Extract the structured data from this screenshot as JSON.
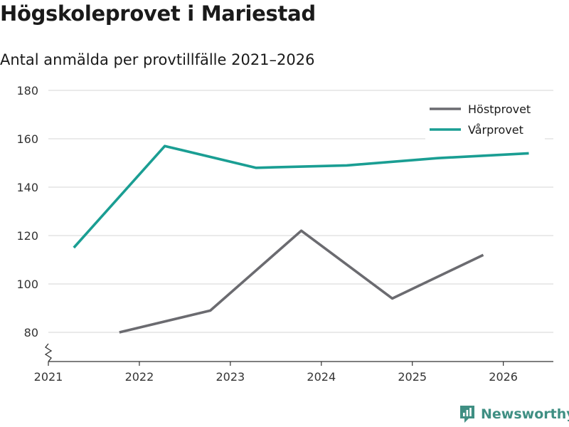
{
  "title": "Högskoleprovet i Mariestad",
  "subtitle": "Antal anmälda per provtillfälle 2021–2026",
  "brand": {
    "name": "Newsworthy",
    "icon": "newsworthy-logo-icon"
  },
  "colors": {
    "series_host": "#6b6b70",
    "series_var": "#1a9e93",
    "grid": "#dddddd",
    "brand": "#3f8f83"
  },
  "chart_data": {
    "type": "line",
    "title": "Högskoleprovet i Mariestad",
    "subtitle": "Antal anmälda per provtillfälle 2021–2026",
    "xlabel": "",
    "ylabel": "",
    "xlim": [
      2021.0,
      2026.55
    ],
    "ylim": [
      68,
      180
    ],
    "y_axis_break": true,
    "x_ticks": [
      2021,
      2022,
      2023,
      2024,
      2025,
      2026
    ],
    "x_tick_labels": [
      "2021",
      "2022",
      "2023",
      "2024",
      "2025",
      "2026"
    ],
    "y_ticks": [
      80,
      100,
      120,
      140,
      160,
      180
    ],
    "y_tick_labels": [
      "80",
      "100",
      "120",
      "140",
      "160",
      "180"
    ],
    "grid": true,
    "legend_position": "top-right",
    "series": [
      {
        "name": "Höstprovet",
        "color": "#6b6b70",
        "x": [
          2021.78,
          2022.78,
          2023.78,
          2024.78,
          2025.78
        ],
        "values": [
          80,
          89,
          122,
          94,
          112
        ]
      },
      {
        "name": "Vårprovet",
        "color": "#1a9e93",
        "x": [
          2021.28,
          2022.28,
          2023.28,
          2024.28,
          2025.28,
          2026.28
        ],
        "values": [
          115,
          157,
          148,
          149,
          152,
          154
        ]
      }
    ]
  }
}
